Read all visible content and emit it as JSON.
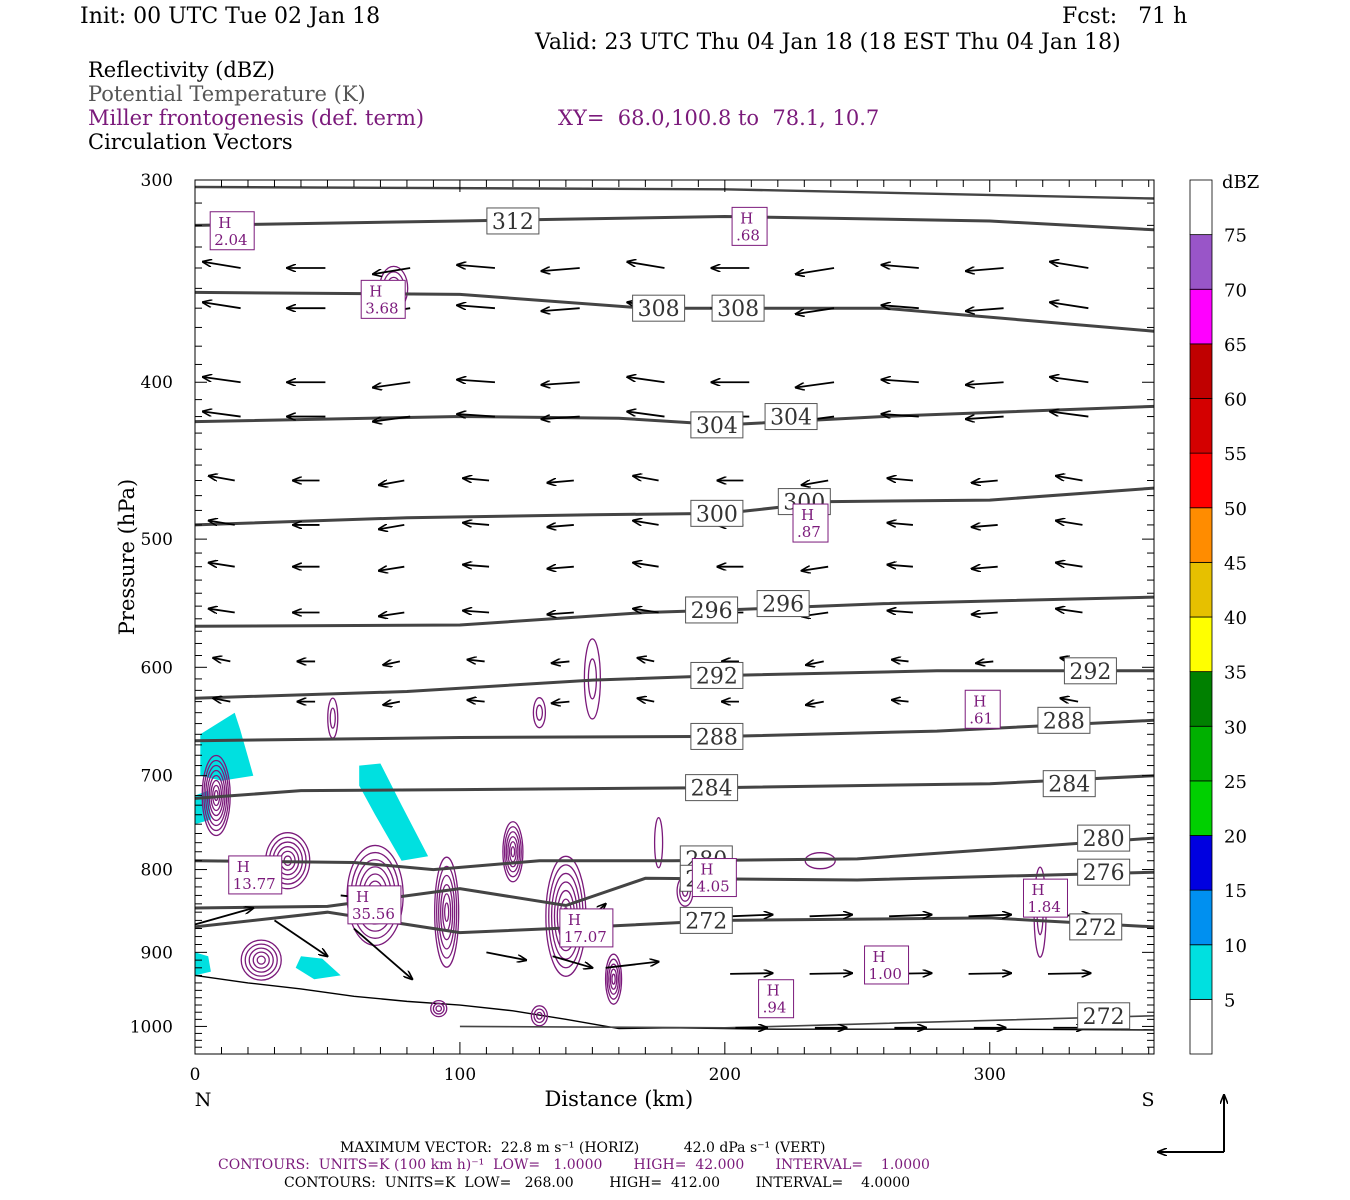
{
  "header": {
    "init": "Init: 00 UTC Tue 02 Jan 18",
    "fcst": "Fcst:   71 h",
    "valid": "Valid: 23 UTC Thu 04 Jan 18 (18 EST Thu 04 Jan 18)"
  },
  "legend": {
    "reflectivity": "Reflectivity (dBZ)",
    "theta": "Potential Temperature (K)",
    "frontogenesis": "Miller frontogenesis (def. term)",
    "xy": "XY=  68.0,100.8 to  78.1, 10.7",
    "vectors": "Circulation Vectors"
  },
  "colorbar": {
    "unit": "dBZ",
    "levels": [
      "5",
      "10",
      "15",
      "20",
      "25",
      "30",
      "35",
      "40",
      "45",
      "50",
      "55",
      "60",
      "65",
      "70",
      "75"
    ],
    "colors": [
      "#00e0e0",
      "#0090f0",
      "#0000e0",
      "#00d000",
      "#00b000",
      "#008000",
      "#ffff00",
      "#e6c000",
      "#ff8c00",
      "#ff0000",
      "#d40000",
      "#c00000",
      "#ff00ff",
      "#9955c8",
      "#ffffff"
    ]
  },
  "footer": {
    "line1": "MAXIMUM VECTOR:  22.8 m s⁻¹ (HORIZ)          42.0 dPa s⁻¹ (VERT)",
    "line2": "CONTOURS:  UNITS=K (100 km h)⁻¹  LOW=   1.0000       HIGH=  42.000       INTERVAL=    1.0000",
    "line3": "CONTOURS:  UNITS=K  LOW=   268.00        HIGH=  412.00        INTERVAL=    4.0000"
  },
  "chart_data": {
    "type": "cross-section",
    "xlabel": "Distance (km)",
    "ylabel": "Pressure (hPa)",
    "x_left_label": "N",
    "x_right_label": "S",
    "xlim": [
      0,
      362
    ],
    "ylim": [
      1040,
      300
    ],
    "y_log": true,
    "xticks": [
      0,
      100,
      200,
      300
    ],
    "yticks": [
      300,
      400,
      500,
      600,
      700,
      800,
      900,
      1000
    ],
    "theta_contours": [
      {
        "label": "312",
        "points": [
          [
            0,
            320
          ],
          [
            100,
            318
          ],
          [
            200,
            316
          ],
          [
            300,
            318
          ],
          [
            362,
            322
          ]
        ],
        "labels_at": [
          [
            120,
            318
          ]
        ]
      },
      {
        "label": "308",
        "points": [
          [
            0,
            352
          ],
          [
            100,
            353
          ],
          [
            170,
            360
          ],
          [
            260,
            360
          ],
          [
            362,
            372
          ]
        ],
        "labels_at": [
          [
            175,
            360
          ],
          [
            205,
            360
          ]
        ]
      },
      {
        "label": "304",
        "points": [
          [
            0,
            423
          ],
          [
            100,
            420
          ],
          [
            160,
            421
          ],
          [
            200,
            425
          ],
          [
            260,
            420
          ],
          [
            362,
            414
          ]
        ],
        "labels_at": [
          [
            197,
            425
          ],
          [
            225,
            420
          ]
        ]
      },
      {
        "label": "300",
        "points": [
          [
            0,
            490
          ],
          [
            80,
            485
          ],
          [
            150,
            483
          ],
          [
            200,
            482
          ],
          [
            240,
            474
          ],
          [
            300,
            473
          ],
          [
            362,
            465
          ]
        ],
        "labels_at": [
          [
            197,
            482
          ],
          [
            230,
            474
          ]
        ]
      },
      {
        "label": "296",
        "points": [
          [
            0,
            566
          ],
          [
            100,
            565
          ],
          [
            170,
            555
          ],
          [
            200,
            553
          ],
          [
            260,
            548
          ],
          [
            362,
            543
          ]
        ],
        "labels_at": [
          [
            195,
            553
          ],
          [
            222,
            548
          ]
        ]
      },
      {
        "label": "292",
        "points": [
          [
            0,
            627
          ],
          [
            80,
            621
          ],
          [
            150,
            611
          ],
          [
            200,
            607
          ],
          [
            280,
            603
          ],
          [
            362,
            603
          ]
        ],
        "labels_at": [
          [
            197,
            607
          ],
          [
            338,
            603
          ]
        ]
      },
      {
        "label": "288",
        "points": [
          [
            0,
            666
          ],
          [
            100,
            663
          ],
          [
            200,
            662
          ],
          [
            280,
            657
          ],
          [
            362,
            647
          ]
        ],
        "labels_at": [
          [
            197,
            662
          ],
          [
            328,
            647
          ]
        ]
      },
      {
        "label": "284",
        "points": [
          [
            0,
            723
          ],
          [
            40,
            715
          ],
          [
            100,
            714
          ],
          [
            200,
            712
          ],
          [
            300,
            708
          ],
          [
            362,
            700
          ]
        ],
        "labels_at": [
          [
            195,
            712
          ],
          [
            330,
            708
          ]
        ]
      },
      {
        "label": "280",
        "points": [
          [
            0,
            790
          ],
          [
            60,
            792
          ],
          [
            90,
            800
          ],
          [
            130,
            790
          ],
          [
            180,
            790
          ],
          [
            250,
            788
          ],
          [
            362,
            765
          ]
        ],
        "labels_at": [
          [
            193,
            788
          ],
          [
            343,
            765
          ]
        ]
      },
      {
        "label": "276",
        "points": [
          [
            0,
            845
          ],
          [
            50,
            843
          ],
          [
            100,
            822
          ],
          [
            140,
            842
          ],
          [
            170,
            810
          ],
          [
            250,
            812
          ],
          [
            362,
            803
          ]
        ],
        "labels_at": [
          [
            193,
            810
          ],
          [
            343,
            803
          ]
        ]
      },
      {
        "label": "272",
        "points": [
          [
            0,
            868
          ],
          [
            50,
            850
          ],
          [
            100,
            875
          ],
          [
            150,
            868
          ],
          [
            200,
            860
          ],
          [
            300,
            857
          ],
          [
            362,
            868
          ]
        ],
        "labels_at": [
          [
            193,
            860
          ],
          [
            340,
            868
          ],
          [
            343,
            985
          ]
        ]
      }
    ],
    "frontogenesis_maxima": [
      {
        "label": "H\n2.04",
        "x": 8,
        "p": 322
      },
      {
        "label": "H\n3.68",
        "x": 65,
        "p": 355
      },
      {
        "label": "H\n.68",
        "x": 205,
        "p": 320
      },
      {
        "label": "H\n.87",
        "x": 228,
        "p": 488
      },
      {
        "label": "H\n.61",
        "x": 293,
        "p": 636
      },
      {
        "label": "H\n13.77",
        "x": 15,
        "p": 805
      },
      {
        "label": "H\n35.56",
        "x": 60,
        "p": 840
      },
      {
        "label": "H\n17.07",
        "x": 140,
        "p": 868
      },
      {
        "label": "H\n4.05",
        "x": 190,
        "p": 808
      },
      {
        "label": "H\n1.84",
        "x": 315,
        "p": 832
      },
      {
        "label": "H\n1.00",
        "x": 255,
        "p": 915
      },
      {
        "label": "H\n.94",
        "x": 215,
        "p": 960
      }
    ],
    "max_vector_horiz": 22.8,
    "max_vector_vert": 42.0
  }
}
